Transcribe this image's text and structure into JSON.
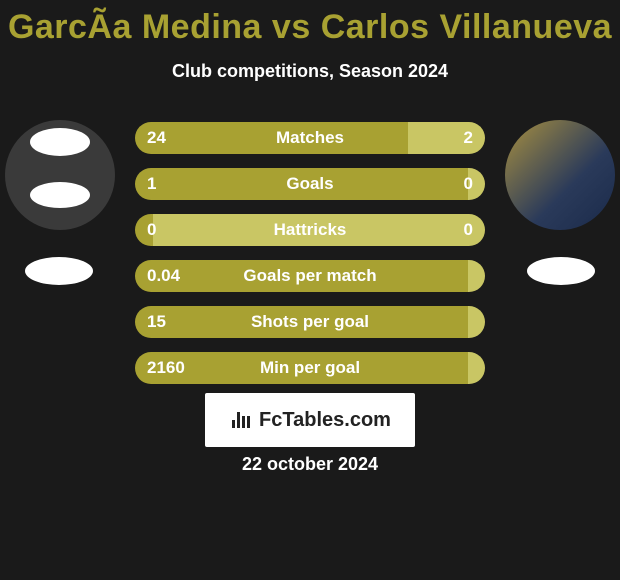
{
  "title": {
    "player1": "GarcÃ­a Medina",
    "vs": "vs",
    "player2": "Carlos Villanueva",
    "color": "#a8a132"
  },
  "subtitle": "Club competitions, Season 2024",
  "colors": {
    "player1": "#a8a132",
    "player2": "#c9c664",
    "bg": "#1a1a1a",
    "text": "#ffffff"
  },
  "bars": [
    {
      "label": "Matches",
      "left_val": "24",
      "right_val": "2",
      "left_pct": 78,
      "right_pct": 22
    },
    {
      "label": "Goals",
      "left_val": "1",
      "right_val": "0",
      "left_pct": 95,
      "right_pct": 5
    },
    {
      "label": "Hattricks",
      "left_val": "0",
      "right_val": "0",
      "left_pct": 5,
      "right_pct": 95
    },
    {
      "label": "Goals per match",
      "left_val": "0.04",
      "right_val": "",
      "left_pct": 95,
      "right_pct": 5
    },
    {
      "label": "Shots per goal",
      "left_val": "15",
      "right_val": "",
      "left_pct": 95,
      "right_pct": 5
    },
    {
      "label": "Min per goal",
      "left_val": "2160",
      "right_val": "",
      "left_pct": 95,
      "right_pct": 5
    }
  ],
  "logo": "FcTables.com",
  "date": "22 october 2024"
}
